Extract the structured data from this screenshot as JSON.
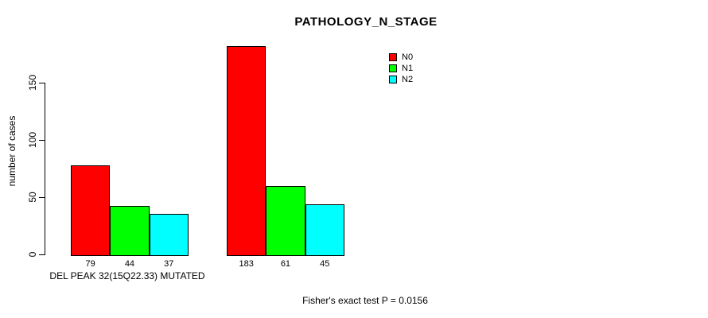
{
  "chart_data": {
    "type": "bar",
    "title": "PATHOLOGY_N_STAGE",
    "ylabel": "number of cases",
    "xlabel": "DEL PEAK 32(15Q22.33) MUTATED",
    "annotation": "Fisher's exact test P = 0.0156",
    "yticks": [
      0,
      50,
      100,
      150
    ],
    "ylim": [
      0,
      185
    ],
    "grid": false,
    "legend_position": "topright",
    "legend": [
      {
        "label": "N0",
        "color": "#ff0000"
      },
      {
        "label": "N1",
        "color": "#00ff00"
      },
      {
        "label": "N2",
        "color": "#00ffff"
      }
    ],
    "groups": [
      {
        "values": [
          79,
          44,
          37
        ]
      },
      {
        "values": [
          183,
          61,
          45
        ]
      }
    ]
  }
}
